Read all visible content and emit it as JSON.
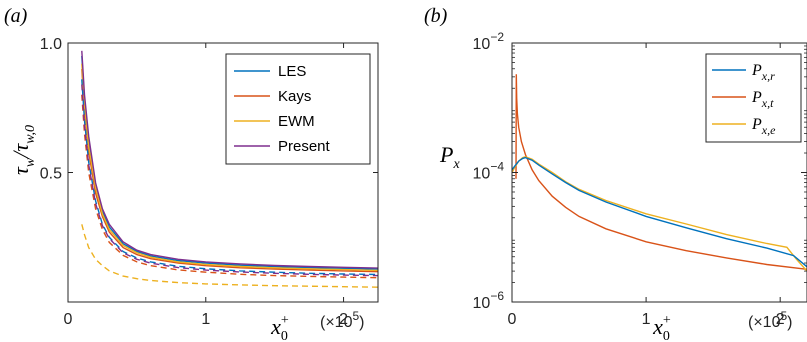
{
  "chart_data": [
    {
      "panel_label": "(a)",
      "type": "line",
      "ylabel": "τ_w/τ_w,0",
      "xlabel": "x_0^+",
      "x_multiplier": "(×10^5)",
      "xlim": [
        0,
        2.25
      ],
      "ylim": [
        0,
        1.0
      ],
      "xticks": [
        0,
        1,
        2
      ],
      "yticks": [
        0.5,
        1.0
      ],
      "ytick_labels": [
        "0.5",
        "1.0"
      ],
      "legend": "top-right",
      "series": [
        {
          "name": "LES",
          "color": "#0072BD",
          "style": "solid",
          "x": [
            0.1,
            0.12,
            0.15,
            0.2,
            0.25,
            0.3,
            0.4,
            0.5,
            0.6,
            0.8,
            1.0,
            1.25,
            1.5,
            1.75,
            2.0,
            2.25
          ],
          "y": [
            0.95,
            0.78,
            0.62,
            0.45,
            0.35,
            0.29,
            0.225,
            0.195,
            0.178,
            0.16,
            0.15,
            0.142,
            0.137,
            0.133,
            0.13,
            0.127
          ]
        },
        {
          "name": "Kays",
          "color": "#D95319",
          "style": "solid",
          "x": [
            0.1,
            0.12,
            0.15,
            0.2,
            0.25,
            0.3,
            0.4,
            0.5,
            0.6,
            0.8,
            1.0,
            1.25,
            1.5,
            1.75,
            2.0,
            2.25
          ],
          "y": [
            0.9,
            0.74,
            0.58,
            0.42,
            0.33,
            0.27,
            0.21,
            0.183,
            0.167,
            0.15,
            0.14,
            0.132,
            0.127,
            0.123,
            0.12,
            0.117
          ]
        },
        {
          "name": "EWM",
          "color": "#EDB120",
          "style": "solid",
          "x": [
            0.1,
            0.12,
            0.15,
            0.2,
            0.25,
            0.3,
            0.4,
            0.5,
            0.6,
            0.8,
            1.0,
            1.25,
            1.5,
            1.75,
            2.0,
            2.25
          ],
          "y": [
            0.92,
            0.76,
            0.6,
            0.44,
            0.34,
            0.28,
            0.218,
            0.19,
            0.173,
            0.155,
            0.145,
            0.137,
            0.132,
            0.128,
            0.125,
            0.122
          ]
        },
        {
          "name": "Present",
          "color": "#7E2F8E",
          "style": "solid",
          "x": [
            0.1,
            0.12,
            0.15,
            0.2,
            0.25,
            0.3,
            0.4,
            0.5,
            0.6,
            0.8,
            1.0,
            1.25,
            1.5,
            1.75,
            2.0,
            2.25
          ],
          "y": [
            0.97,
            0.8,
            0.64,
            0.46,
            0.36,
            0.3,
            0.232,
            0.2,
            0.183,
            0.165,
            0.155,
            0.147,
            0.141,
            0.137,
            0.134,
            0.131
          ]
        },
        {
          "color": "#0072BD",
          "style": "dashed",
          "x": [
            0.1,
            0.12,
            0.15,
            0.2,
            0.25,
            0.3,
            0.4,
            0.5,
            0.6,
            0.8,
            1.0,
            1.25,
            1.5,
            1.75,
            2.0,
            2.25
          ],
          "y": [
            0.86,
            0.7,
            0.54,
            0.39,
            0.3,
            0.25,
            0.195,
            0.17,
            0.155,
            0.138,
            0.128,
            0.12,
            0.115,
            0.111,
            0.108,
            0.106
          ]
        },
        {
          "color": "#D95319",
          "style": "dashed",
          "x": [
            0.1,
            0.12,
            0.15,
            0.2,
            0.25,
            0.3,
            0.4,
            0.5,
            0.6,
            0.8,
            1.0,
            1.25,
            1.5,
            1.75,
            2.0,
            2.25
          ],
          "y": [
            0.8,
            0.65,
            0.5,
            0.36,
            0.28,
            0.23,
            0.18,
            0.155,
            0.14,
            0.124,
            0.115,
            0.107,
            0.102,
            0.099,
            0.096,
            0.094
          ]
        },
        {
          "color": "#EDB120",
          "style": "dashed",
          "x": [
            0.1,
            0.12,
            0.15,
            0.2,
            0.25,
            0.3,
            0.4,
            0.5,
            0.6,
            0.8,
            1.0,
            1.25,
            1.5,
            1.75,
            2.0,
            2.25
          ],
          "y": [
            0.3,
            0.26,
            0.21,
            0.165,
            0.14,
            0.12,
            0.1,
            0.09,
            0.083,
            0.075,
            0.07,
            0.066,
            0.063,
            0.061,
            0.059,
            0.057
          ]
        },
        {
          "color": "#7E2F8E",
          "style": "dashed",
          "x": [
            0.1,
            0.12,
            0.15,
            0.2,
            0.25,
            0.3,
            0.4,
            0.5,
            0.6,
            0.8,
            1.0,
            1.25,
            1.5,
            1.75,
            2.0,
            2.25
          ],
          "y": [
            0.84,
            0.68,
            0.53,
            0.38,
            0.295,
            0.245,
            0.19,
            0.165,
            0.15,
            0.133,
            0.123,
            0.116,
            0.111,
            0.107,
            0.104,
            0.102
          ]
        }
      ]
    },
    {
      "panel_label": "(b)",
      "type": "line",
      "ylabel": "P_x",
      "xlabel": "x_0^+",
      "x_multiplier": "(×10^5)",
      "xlim": [
        0,
        2.2
      ],
      "ylim": [
        1e-06,
        0.01
      ],
      "yscale": "log",
      "xticks": [
        0,
        1,
        2
      ],
      "yticks": [
        1e-06,
        0.0001,
        0.01
      ],
      "ytick_labels": [
        "10^−6",
        "10^−4",
        "10^−2"
      ],
      "legend": "top-right",
      "series": [
        {
          "name": "P_x,r",
          "color": "#0072BD",
          "x": [
            0.0,
            0.02,
            0.05,
            0.08,
            0.1,
            0.15,
            0.2,
            0.3,
            0.4,
            0.5,
            0.7,
            1.0,
            1.3,
            1.6,
            1.9,
            2.1,
            2.2
          ],
          "y": [
            0.00011,
            0.000125,
            0.00015,
            0.000165,
            0.00017,
            0.000155,
            0.00013,
            9.5e-05,
            7e-05,
            5.3e-05,
            3.5e-05,
            2.1e-05,
            1.4e-05,
            9.5e-06,
            6.8e-06,
            5.2e-06,
            3.5e-06
          ]
        },
        {
          "name": "P_x,t",
          "color": "#D95319",
          "x": [
            0.03,
            0.032,
            0.035,
            0.04,
            0.05,
            0.07,
            0.1,
            0.15,
            0.2,
            0.3,
            0.4,
            0.5,
            0.7,
            1.0,
            1.3,
            1.6,
            1.9,
            2.2
          ],
          "y": [
            8e-05,
            0.0033,
            0.0014,
            0.0008,
            0.0005,
            0.0003,
            0.00019,
            0.00011,
            7.5e-05,
            4.3e-05,
            2.9e-05,
            2.1e-05,
            1.35e-05,
            8.5e-06,
            6.2e-06,
            4.8e-06,
            3.8e-06,
            3.2e-06
          ]
        },
        {
          "name": "P_x,e",
          "color": "#EDB120",
          "x": [
            0.0,
            0.02,
            0.05,
            0.08,
            0.1,
            0.15,
            0.2,
            0.3,
            0.4,
            0.5,
            0.7,
            1.0,
            1.3,
            1.6,
            1.9,
            2.05,
            2.12,
            2.2
          ],
          "y": [
            0.0001,
            0.00012,
            0.00015,
            0.00017,
            0.000175,
            0.00016,
            0.000135,
            0.0001,
            7.2e-05,
            5.5e-05,
            3.7e-05,
            2.3e-05,
            1.6e-05,
            1.1e-05,
            8e-06,
            7e-06,
            4.6e-06,
            3e-06
          ]
        }
      ]
    }
  ]
}
